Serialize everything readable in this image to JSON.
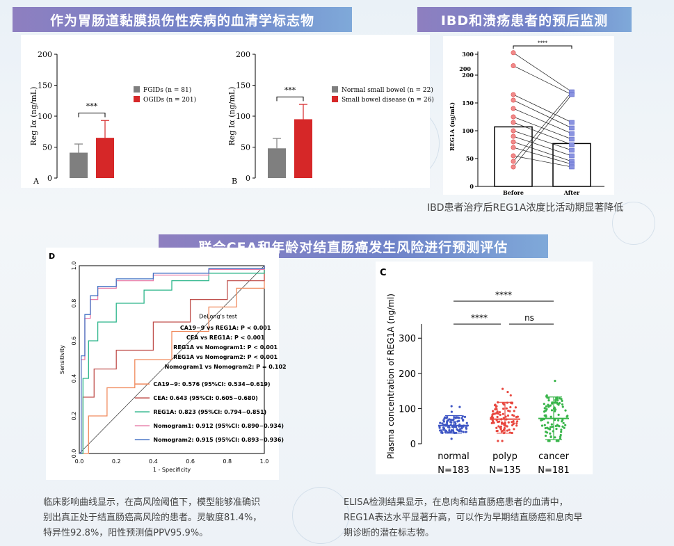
{
  "banners": {
    "top_left": "作为胃肠道黏膜损伤性疾病的血清学标志物",
    "top_right": "IBD和溃疡患者的预后监测",
    "middle": "联合CEA和年龄对结直肠癌发生风险进行预测评估"
  },
  "captions": {
    "ibd": "IBD患者治疗后REG1A浓度比活动期显著降低",
    "roc_line1": "临床影响曲线显示，在高风险阈值下，模型能够准确识",
    "roc_line2": "别出真正处于结直肠癌高风险的患者。灵敏度81.4%，",
    "roc_line3": "特异性92.8%，阳性预测值PPV95.9%。",
    "elisa_line1": "ELISA检测结果显示，在息肉和结直肠癌患者的血清中，",
    "elisa_line2": "REG1A表达水平显著升高，可以作为早期结直肠癌和息肉早",
    "elisa_line3": "期诊断的潜在标志物。"
  },
  "colors": {
    "gray_bar": "#7f7f7f",
    "red_bar": "#d62728",
    "blue": "#3f56c4",
    "green": "#39b54a",
    "brand": "#7b84c6"
  },
  "chart_data": [
    {
      "type": "bar",
      "panel_label": "A",
      "ylabel": "Reg Iα (ng/mL)",
      "ylim": [
        0,
        200
      ],
      "yticks": [
        0,
        50,
        100,
        150,
        200
      ],
      "categories": [
        "FGIDs (n = 81)",
        "OGIDs (n = 201)"
      ],
      "values": [
        41,
        65
      ],
      "errors": [
        14,
        28
      ],
      "significance": "***",
      "legend": [
        "FGIDs (n = 81)",
        "OGIDs (n = 201)"
      ]
    },
    {
      "type": "bar",
      "panel_label": "B",
      "ylabel": "Reg Iα (ng/mL)",
      "ylim": [
        0,
        200
      ],
      "yticks": [
        0,
        50,
        100,
        150,
        200
      ],
      "categories": [
        "Normal small bowel (n = 22)",
        "Small bowel disease (n = 26)"
      ],
      "values": [
        48,
        95
      ],
      "errors": [
        16,
        24
      ],
      "significance": "***",
      "legend": [
        "Normal small bowel (n = 22)",
        "Small bowel disease (n = 26)"
      ]
    },
    {
      "type": "bar",
      "ylabel": "REG1A (ng/mL)",
      "categories": [
        "Before",
        "After"
      ],
      "values": [
        107,
        77
      ],
      "yticks": [
        0,
        50,
        100,
        150,
        200,
        300
      ],
      "significance": "****",
      "before_points": [
        310,
        225,
        165,
        155,
        140,
        125,
        115,
        100,
        90,
        80,
        70,
        55,
        45,
        35
      ],
      "after_points": [
        170,
        165,
        115,
        105,
        95,
        85,
        75,
        65,
        55,
        45,
        40,
        35
      ]
    },
    {
      "type": "line",
      "panel_label": "D",
      "xlabel": "1 - Specificity",
      "ylabel": "Sensitivity",
      "xlim": [
        0,
        1
      ],
      "ylim": [
        0,
        1
      ],
      "ticks": [
        "0.0",
        "0.2",
        "0.4",
        "0.6",
        "0.8",
        "1.0"
      ],
      "delong_title": "DeLong's test",
      "delong": [
        "CA19−9 vs REG1A: P < 0.001",
        "CEA vs REG1A: P < 0.001",
        "REG1A vs Nomogram1: P < 0.001",
        "REG1A vs Nomogram2: P < 0.001",
        "Nomogram1 vs Nomogram2: P = 0.102"
      ],
      "series": [
        {
          "name": "CA19−9: 0.576 (95%CI: 0.534−0.619)",
          "color": "#f08a5d",
          "x": [
            0,
            0.05,
            0.15,
            0.3,
            0.5,
            0.7,
            0.85,
            1
          ],
          "y": [
            0,
            0.2,
            0.35,
            0.5,
            0.65,
            0.78,
            0.88,
            1
          ]
        },
        {
          "name": "CEA: 0.643 (95%CI: 0.605−0.680)",
          "color": "#c0504d",
          "x": [
            0,
            0.02,
            0.08,
            0.2,
            0.4,
            0.6,
            0.8,
            1
          ],
          "y": [
            0,
            0.3,
            0.45,
            0.55,
            0.7,
            0.82,
            0.92,
            1
          ]
        },
        {
          "name": "REG1A: 0.823 (95%CI: 0.794−0.851)",
          "color": "#2bb58a",
          "x": [
            0,
            0.02,
            0.05,
            0.1,
            0.2,
            0.35,
            0.5,
            0.7,
            1
          ],
          "y": [
            0,
            0.4,
            0.6,
            0.7,
            0.8,
            0.87,
            0.92,
            0.96,
            1
          ]
        },
        {
          "name": "Nomogram1: 0.912 (95%CI: 0.890−0.934)",
          "color": "#e87ca8",
          "x": [
            0,
            0.01,
            0.03,
            0.06,
            0.1,
            0.2,
            0.4,
            0.7,
            1
          ],
          "y": [
            0,
            0.5,
            0.72,
            0.82,
            0.88,
            0.92,
            0.95,
            0.98,
            1
          ]
        },
        {
          "name": "Nomogram2: 0.915 (95%CI: 0.893−0.936)",
          "color": "#4472c4",
          "x": [
            0,
            0.01,
            0.03,
            0.06,
            0.1,
            0.2,
            0.4,
            0.7,
            1
          ],
          "y": [
            0,
            0.52,
            0.74,
            0.84,
            0.89,
            0.93,
            0.96,
            0.985,
            1
          ]
        }
      ]
    },
    {
      "type": "scatter",
      "panel_label": "C",
      "ylabel": "Plasma concentration of REG1A (ng/ml)",
      "ylim": [
        0,
        340
      ],
      "yticks": [
        0,
        100,
        200,
        300
      ],
      "categories": [
        "normal",
        "polyp",
        "cancer"
      ],
      "counts": [
        "N=183",
        "N=135",
        "N=181"
      ],
      "medians": [
        52,
        70,
        72
      ],
      "sd_high": [
        80,
        118,
        133
      ],
      "sd_low": [
        30,
        30,
        12
      ],
      "significance": [
        {
          "pair": "normal-cancer",
          "label": "****"
        },
        {
          "pair": "normal-polyp",
          "label": "****"
        },
        {
          "pair": "polyp-cancer",
          "label": "ns"
        }
      ]
    }
  ]
}
